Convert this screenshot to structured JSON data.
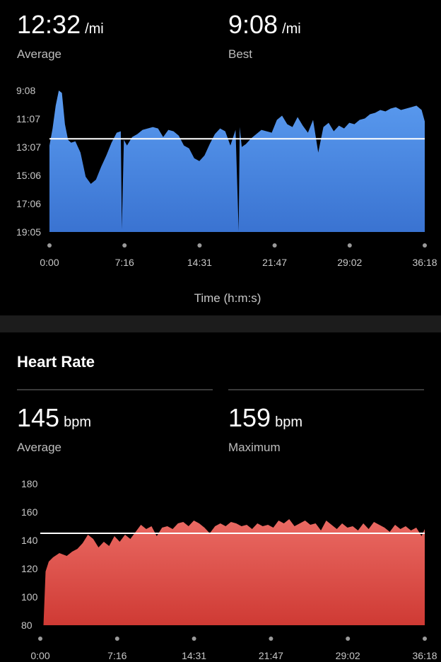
{
  "pace": {
    "average": {
      "value": "12:32",
      "unit": "/mi",
      "label": "Average"
    },
    "best": {
      "value": "9:08",
      "unit": "/mi",
      "label": "Best"
    }
  },
  "heart_rate": {
    "title": "Heart Rate",
    "average": {
      "value": "145",
      "unit": "bpm",
      "label": "Average"
    },
    "maximum": {
      "value": "159",
      "unit": "bpm",
      "label": "Maximum"
    }
  },
  "colors": {
    "pace_fill": "#5b9cf0",
    "hr_fill": "#e25a55",
    "avg_line": "#ffffff",
    "background": "#000000"
  },
  "chart_data": [
    {
      "type": "area",
      "name": "pace-chart",
      "xlabel": "Time (h:m:s)",
      "ylabel": "",
      "x_ticks": [
        "0:00",
        "7:16",
        "14:31",
        "21:47",
        "29:02",
        "36:18"
      ],
      "y_ticks": [
        "9:08",
        "11:07",
        "13:07",
        "15:06",
        "17:06",
        "19:05"
      ],
      "y_inverted": true,
      "ylim_min_per_mile": [
        9.133,
        19.083
      ],
      "xlim_min": [
        0,
        36.3
      ],
      "average_line": 12.53,
      "x": [
        0,
        0.3,
        0.6,
        0.9,
        1.2,
        1.5,
        1.8,
        2.1,
        2.5,
        3.0,
        3.5,
        4.0,
        4.5,
        5.0,
        5.5,
        6.0,
        6.5,
        6.9,
        7.0,
        7.2,
        7.5,
        8.0,
        8.5,
        9.0,
        9.5,
        10.0,
        10.5,
        11.0,
        11.5,
        12.0,
        12.5,
        13.0,
        13.5,
        14.0,
        14.5,
        15.0,
        15.5,
        16.0,
        16.5,
        17.0,
        17.5,
        18.0,
        18.3,
        18.4,
        18.6,
        19.0,
        19.5,
        20.0,
        20.5,
        21.0,
        21.5,
        22.0,
        22.5,
        23.0,
        23.5,
        24.0,
        24.5,
        25.0,
        25.5,
        26.0,
        26.5,
        27.0,
        27.5,
        28.0,
        28.5,
        29.0,
        29.5,
        30.0,
        30.5,
        31.0,
        31.5,
        32.0,
        32.5,
        33.0,
        33.5,
        34.0,
        34.5,
        35.0,
        35.5,
        36.0,
        36.3
      ],
      "y": [
        13.0,
        11.8,
        10.2,
        9.13,
        9.3,
        11.5,
        12.6,
        12.8,
        12.7,
        13.5,
        15.2,
        15.7,
        15.4,
        14.5,
        13.7,
        12.8,
        12.1,
        12.0,
        18.9,
        12.6,
        13.0,
        12.4,
        12.2,
        11.9,
        11.8,
        11.7,
        11.8,
        12.4,
        11.9,
        12.0,
        12.3,
        13.0,
        13.2,
        13.9,
        14.1,
        13.7,
        12.9,
        12.2,
        11.8,
        12.0,
        13.0,
        11.9,
        19.05,
        11.7,
        13.1,
        12.9,
        12.5,
        12.2,
        11.9,
        12.0,
        12.1,
        11.2,
        10.9,
        11.5,
        11.7,
        11.0,
        11.6,
        12.1,
        11.2,
        13.5,
        11.7,
        11.4,
        12.0,
        11.6,
        11.8,
        11.4,
        11.5,
        11.2,
        11.1,
        10.8,
        10.7,
        10.5,
        10.6,
        10.4,
        10.3,
        10.5,
        10.4,
        10.3,
        10.2,
        10.5,
        11.3
      ]
    },
    {
      "type": "area",
      "name": "heart-rate-chart",
      "xlabel": "",
      "ylabel": "",
      "x_ticks": [
        "0:00",
        "7:16",
        "14:31",
        "21:47",
        "29:02",
        "36:18"
      ],
      "y_ticks": [
        "180",
        "160",
        "140",
        "120",
        "100",
        "80"
      ],
      "ylim": [
        80,
        180
      ],
      "xlim_min": [
        0,
        36.3
      ],
      "average_line": 145,
      "x": [
        0,
        0.3,
        0.5,
        0.8,
        1.2,
        1.8,
        2.5,
        3.0,
        3.5,
        4.0,
        4.5,
        5.0,
        5.5,
        6.0,
        6.5,
        7.0,
        7.5,
        8.0,
        8.5,
        9.0,
        9.5,
        10.0,
        10.5,
        11.0,
        11.5,
        12.0,
        12.5,
        13.0,
        13.5,
        14.0,
        14.5,
        15.0,
        15.5,
        16.0,
        16.5,
        17.0,
        17.5,
        18.0,
        18.5,
        19.0,
        19.5,
        20.0,
        20.5,
        21.0,
        21.5,
        22.0,
        22.5,
        23.0,
        23.5,
        24.0,
        24.5,
        25.0,
        25.5,
        26.0,
        26.5,
        27.0,
        27.5,
        28.0,
        28.5,
        29.0,
        29.5,
        30.0,
        30.5,
        31.0,
        31.5,
        32.0,
        32.5,
        33.0,
        33.5,
        34.0,
        34.5,
        35.0,
        35.5,
        36.0,
        36.3
      ],
      "y": [
        80,
        80,
        118,
        125,
        128,
        131,
        129,
        132,
        134,
        138,
        144,
        141,
        135,
        139,
        136,
        143,
        139,
        144,
        141,
        146,
        151,
        148,
        150,
        143,
        149,
        150,
        148,
        152,
        153,
        150,
        154,
        152,
        149,
        145,
        150,
        152,
        150,
        153,
        152,
        150,
        151,
        148,
        152,
        150,
        151,
        149,
        154,
        152,
        155,
        150,
        152,
        154,
        151,
        152,
        147,
        154,
        151,
        148,
        152,
        149,
        150,
        147,
        152,
        148,
        153,
        151,
        149,
        146,
        151,
        148,
        150,
        147,
        149,
        143,
        148
      ]
    }
  ]
}
